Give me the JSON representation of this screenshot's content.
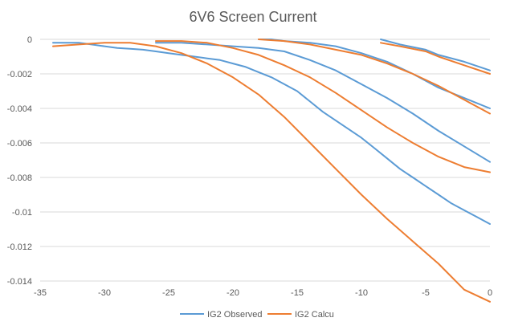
{
  "colors": {
    "observed": "#5B9BD5",
    "calculated": "#ED7D31",
    "grid": "#D9D9D9",
    "axis_text": "#595959"
  },
  "chart_data": {
    "type": "line",
    "title": "6V6 Screen Current",
    "xlabel": "",
    "ylabel": "",
    "xlim": [
      -35,
      0
    ],
    "ylim": [
      -0.014,
      0
    ],
    "x_ticks": [
      -35,
      -30,
      -25,
      -20,
      -15,
      -10,
      -5,
      0
    ],
    "x_tick_labels": [
      "-35",
      "-30",
      "-25",
      "-20",
      "-15",
      "-10",
      "-5",
      "0"
    ],
    "y_ticks": [
      0,
      -0.002,
      -0.004,
      -0.006,
      -0.008,
      -0.01,
      -0.012,
      -0.014
    ],
    "y_tick_labels": [
      "0",
      "-0.002",
      "-0.004",
      "-0.006",
      "-0.008",
      "-0.01",
      "-0.012",
      "-0.014"
    ],
    "grid": true,
    "legend_position": "bottom",
    "legend": [
      "IG2 Observed",
      "IG2 Calcu"
    ],
    "series": [
      {
        "name": "IG2 Observed",
        "color": "#5B9BD5",
        "curves": [
          {
            "x": [
              -34,
              -33,
              -32,
              -31,
              -30,
              -29,
              -28,
              -27,
              -26,
              -25,
              -24,
              -23,
              -22,
              -21,
              -20,
              -19,
              -18,
              -17,
              -16,
              -15,
              -14,
              -13,
              -12,
              -11,
              -10,
              -9,
              -8,
              -7,
              -6,
              -5,
              -4,
              -3,
              -2,
              -1,
              0
            ],
            "y": [
              -0.0002,
              -0.0002,
              -0.0002,
              -0.0003,
              -0.0004,
              -0.0005,
              -0.00055,
              -0.0006,
              -0.0007,
              -0.0008,
              -0.0009,
              -0.001,
              -0.0011,
              -0.0012,
              -0.0014,
              -0.0016,
              -0.0019,
              -0.0022,
              -0.0026,
              -0.003,
              -0.0036,
              -0.0042,
              -0.0047,
              -0.0052,
              -0.0057,
              -0.0063,
              -0.0069,
              -0.0075,
              -0.008,
              -0.0085,
              -0.009,
              -0.0095,
              -0.0099,
              -0.0103,
              -0.0107
            ]
          },
          {
            "x": [
              -26,
              -24,
              -22,
              -20,
              -18,
              -16,
              -14,
              -12,
              -10,
              -8,
              -6,
              -4,
              -2,
              0
            ],
            "y": [
              -0.0002,
              -0.0002,
              -0.0003,
              -0.0004,
              -0.0005,
              -0.0007,
              -0.0012,
              -0.0018,
              -0.0026,
              -0.0034,
              -0.0043,
              -0.0053,
              -0.0062,
              -0.0071
            ]
          },
          {
            "x": [
              -18,
              -17,
              -16,
              -14,
              -12,
              -10,
              -8,
              -6,
              -4,
              -2,
              0
            ],
            "y": [
              0,
              0,
              -0.0001,
              -0.0002,
              -0.0004,
              -0.0008,
              -0.0013,
              -0.002,
              -0.0028,
              -0.0034,
              -0.004
            ]
          },
          {
            "x": [
              -8.5,
              -7,
              -5,
              -4,
              -2,
              0
            ],
            "y": [
              0,
              -0.0003,
              -0.0006,
              -0.0009,
              -0.0013,
              -0.0018
            ]
          }
        ]
      },
      {
        "name": "IG2 Calcu",
        "color": "#ED7D31",
        "curves": [
          {
            "x": [
              -34,
              -32,
              -30,
              -28,
              -26,
              -24,
              -22,
              -20,
              -18,
              -16,
              -14,
              -12,
              -10,
              -8,
              -6,
              -4,
              -2,
              0
            ],
            "y": [
              -0.0004,
              -0.0003,
              -0.0002,
              -0.0002,
              -0.0004,
              -0.0008,
              -0.0014,
              -0.0022,
              -0.0032,
              -0.0045,
              -0.006,
              -0.0075,
              -0.009,
              -0.0104,
              -0.0117,
              -0.013,
              -0.0145,
              -0.0152
            ]
          },
          {
            "x": [
              -26,
              -24,
              -22,
              -20,
              -18,
              -16,
              -14,
              -12,
              -10,
              -8,
              -6,
              -4,
              -2,
              0
            ],
            "y": [
              -0.0001,
              -0.0001,
              -0.0002,
              -0.0005,
              -0.0009,
              -0.0015,
              -0.0022,
              -0.0031,
              -0.0041,
              -0.0051,
              -0.006,
              -0.0068,
              -0.0074,
              -0.0077
            ]
          },
          {
            "x": [
              -18,
              -16,
              -14,
              -12,
              -10,
              -8,
              -6,
              -4,
              -2,
              0
            ],
            "y": [
              0,
              -0.0001,
              -0.0003,
              -0.0006,
              -0.0009,
              -0.0014,
              -0.002,
              -0.0027,
              -0.0035,
              -0.0043
            ]
          },
          {
            "x": [
              -8.5,
              -7,
              -5,
              -4,
              -2,
              0
            ],
            "y": [
              -0.0002,
              -0.0004,
              -0.0007,
              -0.001,
              -0.0015,
              -0.002
            ]
          }
        ]
      }
    ]
  }
}
